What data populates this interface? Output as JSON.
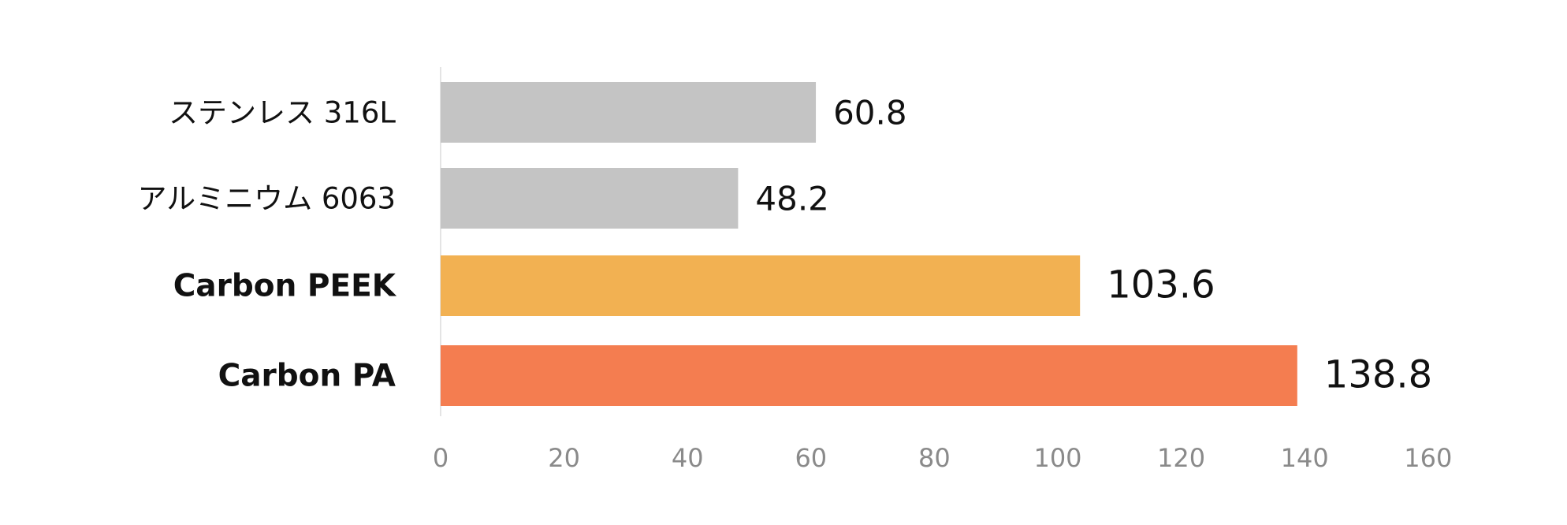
{
  "chart_data": {
    "type": "bar",
    "orientation": "horizontal",
    "categories": [
      "ステンレス 316L",
      "アルミニウム 6063",
      "Carbon PEEK",
      "Carbon PA"
    ],
    "values": [
      60.8,
      48.2,
      103.6,
      138.8
    ],
    "value_labels": [
      "60.8",
      "48.2",
      "103.6",
      "138.8"
    ],
    "highlighted": [
      false,
      false,
      true,
      true
    ],
    "colors": [
      "#c4c4c4",
      "#c4c4c4",
      "#f2b152",
      "#f47d50"
    ],
    "xlim": [
      0,
      160
    ],
    "x_ticks": [
      0,
      20,
      40,
      60,
      80,
      100,
      120,
      140,
      160
    ],
    "x_tick_labels": [
      "0",
      "20",
      "40",
      "60",
      "80",
      "100",
      "120",
      "140",
      "160"
    ],
    "grid": false,
    "legend": "none",
    "title": "",
    "xlabel": "",
    "ylabel": ""
  }
}
